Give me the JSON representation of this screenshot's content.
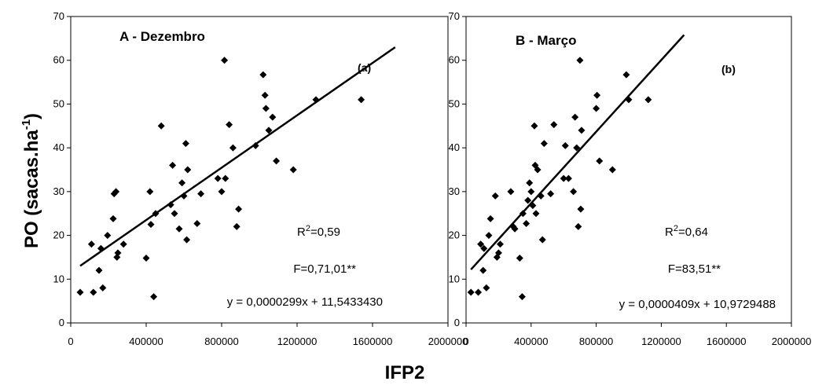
{
  "chart_data": [
    {
      "type": "scatter",
      "title": "A - Dezembro",
      "panel_label": "(a)",
      "xlim": [
        0,
        2000000
      ],
      "ylim": [
        0,
        70
      ],
      "xticks": [
        0,
        400000,
        800000,
        1200000,
        1600000,
        2000000
      ],
      "yticks": [
        0,
        10,
        20,
        30,
        40,
        50,
        60,
        70
      ],
      "points": [
        [
          50000,
          7
        ],
        [
          120000,
          7
        ],
        [
          110000,
          18
        ],
        [
          150000,
          12
        ],
        [
          160000,
          17
        ],
        [
          170000,
          8
        ],
        [
          195000,
          20
        ],
        [
          225000,
          23.8
        ],
        [
          230000,
          29.5
        ],
        [
          240000,
          30
        ],
        [
          245000,
          15
        ],
        [
          250000,
          16
        ],
        [
          280000,
          18
        ],
        [
          400000,
          14.8
        ],
        [
          420000,
          30
        ],
        [
          425000,
          22.5
        ],
        [
          440000,
          6
        ],
        [
          450000,
          25
        ],
        [
          480000,
          45
        ],
        [
          530000,
          27
        ],
        [
          540000,
          36
        ],
        [
          550000,
          25
        ],
        [
          575000,
          21.5
        ],
        [
          590000,
          32
        ],
        [
          600000,
          29
        ],
        [
          610000,
          41
        ],
        [
          615000,
          19
        ],
        [
          620000,
          35
        ],
        [
          670000,
          22.7
        ],
        [
          690000,
          29.5
        ],
        [
          780000,
          33
        ],
        [
          800000,
          30
        ],
        [
          815000,
          60
        ],
        [
          820000,
          33
        ],
        [
          840000,
          45.3
        ],
        [
          860000,
          40
        ],
        [
          880000,
          22
        ],
        [
          890000,
          26
        ],
        [
          980000,
          40.5
        ],
        [
          1020000,
          56.7
        ],
        [
          1030000,
          52
        ],
        [
          1035000,
          49
        ],
        [
          1050000,
          44
        ],
        [
          1070000,
          47
        ],
        [
          1090000,
          37
        ],
        [
          1180000,
          35
        ],
        [
          1300000,
          51
        ],
        [
          1540000,
          51
        ]
      ],
      "regression": {
        "slope": 2.99e-05,
        "intercept": 11.543343,
        "x_range": [
          50000,
          1720000
        ]
      },
      "r2_text": "0,59",
      "f_text": "F=0,71,01**",
      "equation": "y = 0,0000299x + 11,5433430"
    },
    {
      "type": "scatter",
      "title": "B - Março",
      "panel_label": "(b)",
      "xlim": [
        0,
        2000000
      ],
      "ylim": [
        0,
        70
      ],
      "xticks": [
        0,
        400000,
        800000,
        1200000,
        1600000,
        2000000
      ],
      "yticks": [
        0,
        10,
        20,
        30,
        40,
        50,
        60,
        70
      ],
      "points": [
        [
          30000,
          7
        ],
        [
          75000,
          7
        ],
        [
          90000,
          18
        ],
        [
          105000,
          12
        ],
        [
          110000,
          17
        ],
        [
          125000,
          8
        ],
        [
          140000,
          20
        ],
        [
          150000,
          23.8
        ],
        [
          180000,
          29
        ],
        [
          190000,
          15
        ],
        [
          200000,
          16
        ],
        [
          210000,
          18
        ],
        [
          275000,
          30
        ],
        [
          290000,
          22
        ],
        [
          300000,
          21.5
        ],
        [
          330000,
          14.8
        ],
        [
          345000,
          6
        ],
        [
          350000,
          25
        ],
        [
          370000,
          22.7
        ],
        [
          380000,
          28
        ],
        [
          390000,
          32
        ],
        [
          400000,
          30
        ],
        [
          410000,
          26.8
        ],
        [
          420000,
          45
        ],
        [
          425000,
          36
        ],
        [
          430000,
          25
        ],
        [
          440000,
          35
        ],
        [
          460000,
          29
        ],
        [
          470000,
          19
        ],
        [
          480000,
          41
        ],
        [
          520000,
          29.5
        ],
        [
          540000,
          45.3
        ],
        [
          600000,
          33
        ],
        [
          610000,
          40.5
        ],
        [
          630000,
          33
        ],
        [
          660000,
          30
        ],
        [
          670000,
          47
        ],
        [
          680000,
          40
        ],
        [
          690000,
          22
        ],
        [
          700000,
          60
        ],
        [
          705000,
          26
        ],
        [
          710000,
          44
        ],
        [
          800000,
          49
        ],
        [
          805000,
          52
        ],
        [
          820000,
          37
        ],
        [
          900000,
          35
        ],
        [
          985000,
          56.7
        ],
        [
          1000000,
          51
        ],
        [
          1120000,
          51
        ]
      ],
      "regression": {
        "slope": 4.09e-05,
        "intercept": 10.9729488,
        "x_range": [
          30000,
          1340000
        ]
      },
      "r2_text": "0,64",
      "f_text": "F=83,51**",
      "equation": "y = 0,0000409x + 10,9729488"
    }
  ],
  "ylabel": {
    "main": "PO (sacas.ha",
    "sup": "-1",
    "close": ")"
  },
  "xlabel": "IFP2",
  "r2_prefix": "R",
  "r2_sup": "2",
  "r2_eq": "="
}
